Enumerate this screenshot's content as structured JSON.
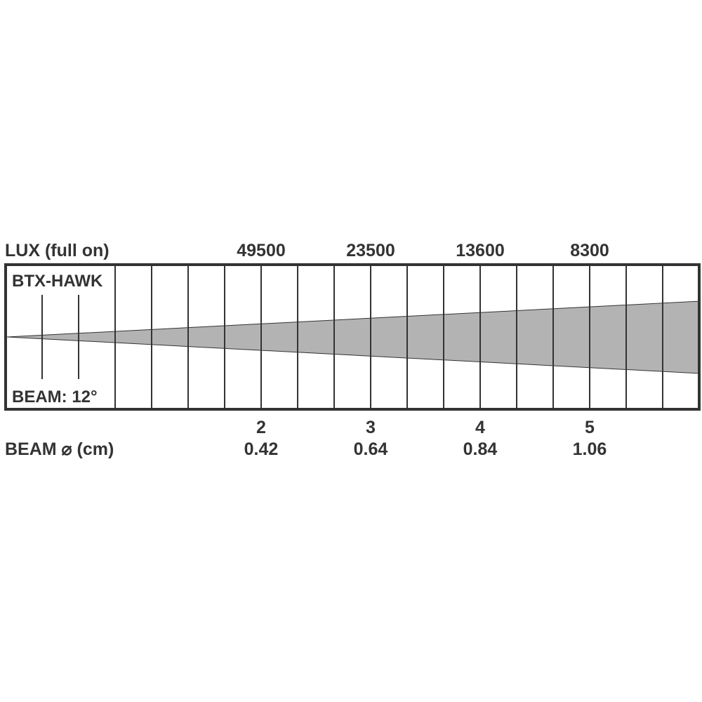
{
  "header": {
    "lux_label": "LUX (full on)"
  },
  "product": {
    "name": "BTX-HAWK",
    "beam_angle": "BEAM: 12°"
  },
  "footer": {
    "beam_diameter_label": "BEAM ⌀ (cm)"
  },
  "measurements": [
    {
      "distance": "2",
      "lux": "49500",
      "diameter": "0.42"
    },
    {
      "distance": "3",
      "lux": "23500",
      "diameter": "0.64"
    },
    {
      "distance": "4",
      "lux": "13600",
      "diameter": "0.84"
    },
    {
      "distance": "5",
      "lux": "8300",
      "diameter": "1.06"
    }
  ],
  "colors": {
    "beam_fill": "#b3b3b3",
    "line": "#333333",
    "text": "#333333"
  }
}
